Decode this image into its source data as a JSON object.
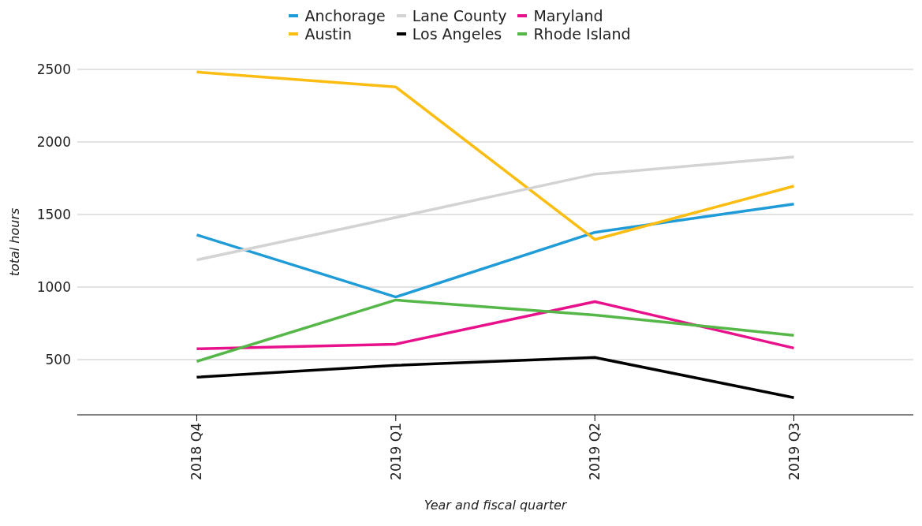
{
  "chart_data": {
    "type": "line",
    "xlabel": "Year and fiscal quarter",
    "ylabel": "total hours",
    "categories": [
      "2018 Q4",
      "2019 Q1",
      "2019 Q2",
      "2019 Q3"
    ],
    "series": [
      {
        "name": "Anchorage",
        "color": "#1f9bd7",
        "values": [
          1360,
          932,
          1377,
          1572
        ]
      },
      {
        "name": "Austin",
        "color": "#fbbd12",
        "values": [
          2482,
          2379,
          1328,
          1696
        ]
      },
      {
        "name": "Lane County",
        "color": "#d3d3d3",
        "values": [
          1187,
          1480,
          1778,
          1897
        ]
      },
      {
        "name": "Los Angeles",
        "color": "#000000",
        "values": [
          379,
          461,
          515,
          238
        ]
      },
      {
        "name": "Maryland",
        "color": "#e8118c",
        "values": [
          575,
          607,
          900,
          580
        ]
      },
      {
        "name": "Rhode Island",
        "color": "#55b748",
        "values": [
          488,
          911,
          808,
          667
        ]
      }
    ],
    "ylim": [
      120,
      2500
    ],
    "yticks": [
      500,
      1000,
      1500,
      2000,
      2500
    ],
    "grid": "y",
    "legend": "top",
    "marker": "none",
    "line_style": "solid"
  }
}
